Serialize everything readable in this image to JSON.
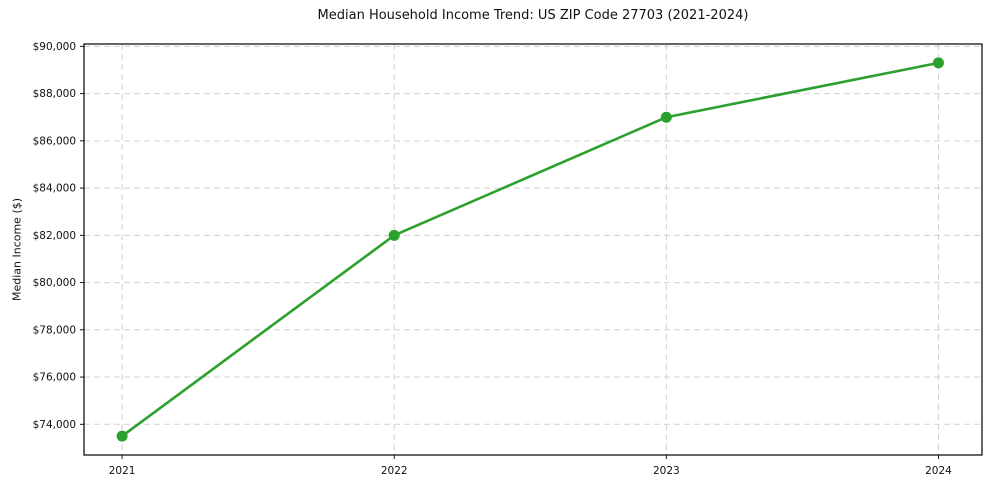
{
  "chart_data": {
    "type": "line",
    "title": "Median Household Income Trend: US ZIP Code 27703 (2021-2024)",
    "xlabel": "",
    "ylabel": "Median Income ($)",
    "categories": [
      "2021",
      "2022",
      "2023",
      "2024"
    ],
    "x": [
      2021,
      2022,
      2023,
      2024
    ],
    "series": [
      {
        "name": "Median Household Income",
        "values": [
          73500,
          82000,
          87000,
          89300
        ],
        "color": "#2ca02c",
        "marker": "circle"
      }
    ],
    "y_ticks": [
      74000,
      76000,
      78000,
      80000,
      82000,
      84000,
      86000,
      88000,
      90000
    ],
    "y_tick_labels": [
      "$74,000",
      "$76,000",
      "$78,000",
      "$80,000",
      "$82,000",
      "$84,000",
      "$86,000",
      "$88,000",
      "$90,000"
    ],
    "x_tick_labels": [
      "2021",
      "2022",
      "2023",
      "2024"
    ],
    "ylim": [
      72700,
      90100
    ],
    "xlim": [
      2020.86,
      2024.16
    ],
    "grid": true,
    "grid_style": "dashed",
    "grid_color": "#d0d0d0",
    "spine_color": "#000000",
    "legend": "none",
    "plot_background": "#ffffff"
  }
}
